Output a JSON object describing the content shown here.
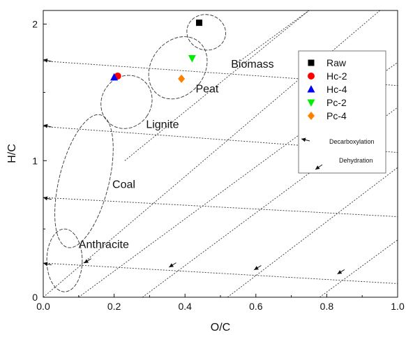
{
  "chart_data": {
    "type": "scatter",
    "xlabel": "O/C",
    "ylabel": "H/C",
    "xlim": [
      0,
      1.0
    ],
    "ylim": [
      0,
      2.1
    ],
    "x_ticks": [
      "0.0",
      "0.2",
      "0.4",
      "0.6",
      "0.8",
      "1.0"
    ],
    "y_ticks": [
      "0",
      "1",
      "2"
    ],
    "x_tick_values": [
      0,
      0.2,
      0.4,
      0.6,
      0.8,
      1.0
    ],
    "y_tick_values": [
      0,
      1,
      2
    ],
    "grid": false,
    "legend_placement": "right",
    "series": [
      {
        "name": "Raw",
        "marker": "square",
        "color": "#000000",
        "points": [
          {
            "x": 0.44,
            "y": 2.01
          }
        ]
      },
      {
        "name": "Hc-2",
        "marker": "circle",
        "color": "#ff0000",
        "points": [
          {
            "x": 0.21,
            "y": 1.62
          }
        ]
      },
      {
        "name": "Hc-4",
        "marker": "triangle-up",
        "color": "#0000ff",
        "points": [
          {
            "x": 0.2,
            "y": 1.61
          }
        ]
      },
      {
        "name": "Pc-2",
        "marker": "triangle-down",
        "color": "#00ee00",
        "points": [
          {
            "x": 0.42,
            "y": 1.75
          }
        ]
      },
      {
        "name": "Pc-4",
        "marker": "diamond",
        "color": "#ff8000",
        "points": [
          {
            "x": 0.39,
            "y": 1.6
          }
        ]
      }
    ],
    "regions": [
      {
        "label": "Anthracite",
        "cx": 0.06,
        "cy": 0.27,
        "rx": 0.05,
        "ry": 0.23,
        "angle": 0,
        "label_x": 0.1,
        "label_y": 0.36
      },
      {
        "label": "Coal",
        "cx": 0.115,
        "cy": 0.85,
        "rx": 0.07,
        "ry": 0.5,
        "angle": 14,
        "label_x": 0.195,
        "label_y": 0.8
      },
      {
        "label": "Lignite",
        "cx": 0.235,
        "cy": 1.43,
        "rx": 0.07,
        "ry": 0.2,
        "angle": 33,
        "label_x": 0.29,
        "label_y": 1.24
      },
      {
        "label": "Peat",
        "cx": 0.38,
        "cy": 1.68,
        "rx": 0.075,
        "ry": 0.245,
        "angle": 37,
        "label_x": 0.43,
        "label_y": 1.5
      },
      {
        "label": "Biomass",
        "cx": 0.46,
        "cy": 1.94,
        "rx": 0.055,
        "ry": 0.13,
        "angle": 12,
        "label_x": 0.53,
        "label_y": 1.68
      }
    ],
    "reference_lines": [
      {
        "kind": "decarboxylation",
        "label": "Decarboxylation",
        "from": [
          0,
          0.25
        ],
        "to": [
          1.0,
          0.1
        ]
      },
      {
        "kind": "decarboxylation",
        "from": [
          0,
          0.73
        ],
        "to": [
          1.0,
          0.59
        ]
      },
      {
        "kind": "decarboxylation",
        "from": [
          0,
          1.25
        ],
        "to": [
          1.0,
          1.06
        ]
      },
      {
        "kind": "decarboxylation",
        "from": [
          0,
          1.73
        ],
        "to": [
          1.0,
          1.55
        ]
      },
      {
        "kind": "dehydration",
        "label": "Dehydration",
        "from": [
          0.1,
          0
        ],
        "to": [
          1.0,
          1.72
        ]
      },
      {
        "kind": "dehydration",
        "from": [
          0.28,
          0
        ],
        "to": [
          1.0,
          1.39
        ]
      },
      {
        "kind": "dehydration",
        "from": [
          0.52,
          0
        ],
        "to": [
          1.0,
          0.95
        ]
      },
      {
        "kind": "dehydration",
        "from": [
          0.78,
          0
        ],
        "to": [
          1.0,
          0.42
        ]
      },
      {
        "kind": "dehydration",
        "from": [
          0,
          0.0
        ],
        "to": [
          0.95,
          2.1
        ]
      },
      {
        "kind": "dehydration",
        "from": [
          0.23,
          1.0
        ],
        "to": [
          0.75,
          2.1
        ]
      },
      {
        "kind": "dehydration",
        "from": [
          0.55,
          1.72
        ],
        "to": [
          0.75,
          2.1
        ]
      }
    ],
    "arrows": [
      {
        "x": 0.0,
        "y": 1.74,
        "dir": "decarboxylation"
      },
      {
        "x": 0.0,
        "y": 1.26,
        "dir": "decarboxylation"
      },
      {
        "x": 0.0,
        "y": 0.73,
        "dir": "decarboxylation"
      },
      {
        "x": 0.0,
        "y": 0.25,
        "dir": "decarboxylation"
      },
      {
        "x": 0.115,
        "y": 0.25,
        "dir": "dehydration"
      },
      {
        "x": 0.355,
        "y": 0.22,
        "dir": "dehydration"
      },
      {
        "x": 0.595,
        "y": 0.2,
        "dir": "dehydration"
      },
      {
        "x": 0.83,
        "y": 0.17,
        "dir": "dehydration"
      }
    ]
  },
  "legend_notes": {
    "decarboxylation": "Decarboxylation",
    "dehydration": "Dehydration"
  }
}
